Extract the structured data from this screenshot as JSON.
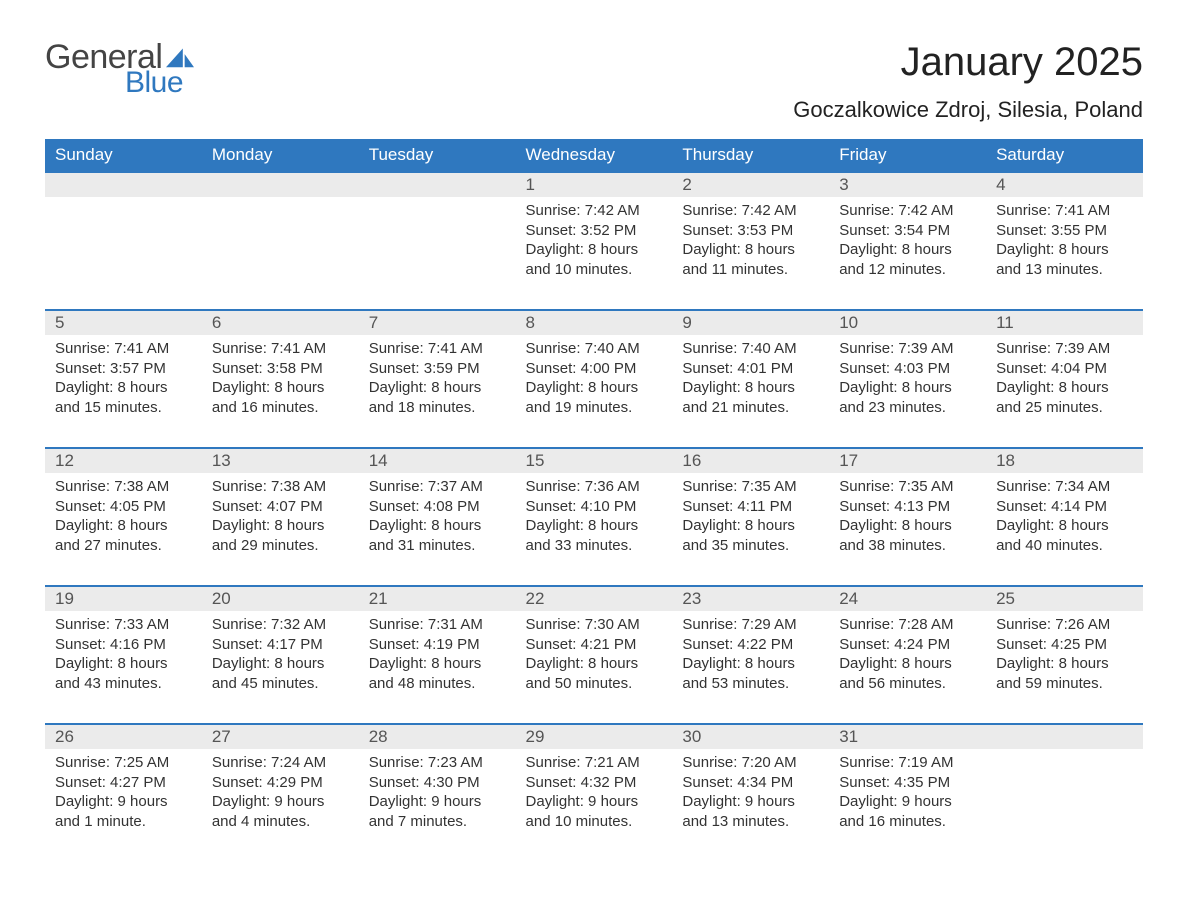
{
  "logo": {
    "text_general": "General",
    "text_blue": "Blue",
    "sail_color": "#2f78bf",
    "general_color": "#444444"
  },
  "header": {
    "month_title": "January 2025",
    "location": "Goczalkowice Zdroj, Silesia, Poland"
  },
  "calendar": {
    "type": "table",
    "header_bg": "#2f78bf",
    "header_text_color": "#ffffff",
    "daynum_bg": "#ebebeb",
    "row_border_color": "#2f78bf",
    "background_color": "#ffffff",
    "text_color": "#333333",
    "header_fontsize": 17,
    "daynum_fontsize": 17,
    "body_fontsize": 15,
    "day_headers": [
      "Sunday",
      "Monday",
      "Tuesday",
      "Wednesday",
      "Thursday",
      "Friday",
      "Saturday"
    ],
    "weeks": [
      [
        {
          "num": "",
          "lines": []
        },
        {
          "num": "",
          "lines": []
        },
        {
          "num": "",
          "lines": []
        },
        {
          "num": "1",
          "lines": [
            "Sunrise: 7:42 AM",
            "Sunset: 3:52 PM",
            "Daylight: 8 hours",
            "and 10 minutes."
          ]
        },
        {
          "num": "2",
          "lines": [
            "Sunrise: 7:42 AM",
            "Sunset: 3:53 PM",
            "Daylight: 8 hours",
            "and 11 minutes."
          ]
        },
        {
          "num": "3",
          "lines": [
            "Sunrise: 7:42 AM",
            "Sunset: 3:54 PM",
            "Daylight: 8 hours",
            "and 12 minutes."
          ]
        },
        {
          "num": "4",
          "lines": [
            "Sunrise: 7:41 AM",
            "Sunset: 3:55 PM",
            "Daylight: 8 hours",
            "and 13 minutes."
          ]
        }
      ],
      [
        {
          "num": "5",
          "lines": [
            "Sunrise: 7:41 AM",
            "Sunset: 3:57 PM",
            "Daylight: 8 hours",
            "and 15 minutes."
          ]
        },
        {
          "num": "6",
          "lines": [
            "Sunrise: 7:41 AM",
            "Sunset: 3:58 PM",
            "Daylight: 8 hours",
            "and 16 minutes."
          ]
        },
        {
          "num": "7",
          "lines": [
            "Sunrise: 7:41 AM",
            "Sunset: 3:59 PM",
            "Daylight: 8 hours",
            "and 18 minutes."
          ]
        },
        {
          "num": "8",
          "lines": [
            "Sunrise: 7:40 AM",
            "Sunset: 4:00 PM",
            "Daylight: 8 hours",
            "and 19 minutes."
          ]
        },
        {
          "num": "9",
          "lines": [
            "Sunrise: 7:40 AM",
            "Sunset: 4:01 PM",
            "Daylight: 8 hours",
            "and 21 minutes."
          ]
        },
        {
          "num": "10",
          "lines": [
            "Sunrise: 7:39 AM",
            "Sunset: 4:03 PM",
            "Daylight: 8 hours",
            "and 23 minutes."
          ]
        },
        {
          "num": "11",
          "lines": [
            "Sunrise: 7:39 AM",
            "Sunset: 4:04 PM",
            "Daylight: 8 hours",
            "and 25 minutes."
          ]
        }
      ],
      [
        {
          "num": "12",
          "lines": [
            "Sunrise: 7:38 AM",
            "Sunset: 4:05 PM",
            "Daylight: 8 hours",
            "and 27 minutes."
          ]
        },
        {
          "num": "13",
          "lines": [
            "Sunrise: 7:38 AM",
            "Sunset: 4:07 PM",
            "Daylight: 8 hours",
            "and 29 minutes."
          ]
        },
        {
          "num": "14",
          "lines": [
            "Sunrise: 7:37 AM",
            "Sunset: 4:08 PM",
            "Daylight: 8 hours",
            "and 31 minutes."
          ]
        },
        {
          "num": "15",
          "lines": [
            "Sunrise: 7:36 AM",
            "Sunset: 4:10 PM",
            "Daylight: 8 hours",
            "and 33 minutes."
          ]
        },
        {
          "num": "16",
          "lines": [
            "Sunrise: 7:35 AM",
            "Sunset: 4:11 PM",
            "Daylight: 8 hours",
            "and 35 minutes."
          ]
        },
        {
          "num": "17",
          "lines": [
            "Sunrise: 7:35 AM",
            "Sunset: 4:13 PM",
            "Daylight: 8 hours",
            "and 38 minutes."
          ]
        },
        {
          "num": "18",
          "lines": [
            "Sunrise: 7:34 AM",
            "Sunset: 4:14 PM",
            "Daylight: 8 hours",
            "and 40 minutes."
          ]
        }
      ],
      [
        {
          "num": "19",
          "lines": [
            "Sunrise: 7:33 AM",
            "Sunset: 4:16 PM",
            "Daylight: 8 hours",
            "and 43 minutes."
          ]
        },
        {
          "num": "20",
          "lines": [
            "Sunrise: 7:32 AM",
            "Sunset: 4:17 PM",
            "Daylight: 8 hours",
            "and 45 minutes."
          ]
        },
        {
          "num": "21",
          "lines": [
            "Sunrise: 7:31 AM",
            "Sunset: 4:19 PM",
            "Daylight: 8 hours",
            "and 48 minutes."
          ]
        },
        {
          "num": "22",
          "lines": [
            "Sunrise: 7:30 AM",
            "Sunset: 4:21 PM",
            "Daylight: 8 hours",
            "and 50 minutes."
          ]
        },
        {
          "num": "23",
          "lines": [
            "Sunrise: 7:29 AM",
            "Sunset: 4:22 PM",
            "Daylight: 8 hours",
            "and 53 minutes."
          ]
        },
        {
          "num": "24",
          "lines": [
            "Sunrise: 7:28 AM",
            "Sunset: 4:24 PM",
            "Daylight: 8 hours",
            "and 56 minutes."
          ]
        },
        {
          "num": "25",
          "lines": [
            "Sunrise: 7:26 AM",
            "Sunset: 4:25 PM",
            "Daylight: 8 hours",
            "and 59 minutes."
          ]
        }
      ],
      [
        {
          "num": "26",
          "lines": [
            "Sunrise: 7:25 AM",
            "Sunset: 4:27 PM",
            "Daylight: 9 hours",
            "and 1 minute."
          ]
        },
        {
          "num": "27",
          "lines": [
            "Sunrise: 7:24 AM",
            "Sunset: 4:29 PM",
            "Daylight: 9 hours",
            "and 4 minutes."
          ]
        },
        {
          "num": "28",
          "lines": [
            "Sunrise: 7:23 AM",
            "Sunset: 4:30 PM",
            "Daylight: 9 hours",
            "and 7 minutes."
          ]
        },
        {
          "num": "29",
          "lines": [
            "Sunrise: 7:21 AM",
            "Sunset: 4:32 PM",
            "Daylight: 9 hours",
            "and 10 minutes."
          ]
        },
        {
          "num": "30",
          "lines": [
            "Sunrise: 7:20 AM",
            "Sunset: 4:34 PM",
            "Daylight: 9 hours",
            "and 13 minutes."
          ]
        },
        {
          "num": "31",
          "lines": [
            "Sunrise: 7:19 AM",
            "Sunset: 4:35 PM",
            "Daylight: 9 hours",
            "and 16 minutes."
          ]
        },
        {
          "num": "",
          "lines": []
        }
      ]
    ]
  }
}
